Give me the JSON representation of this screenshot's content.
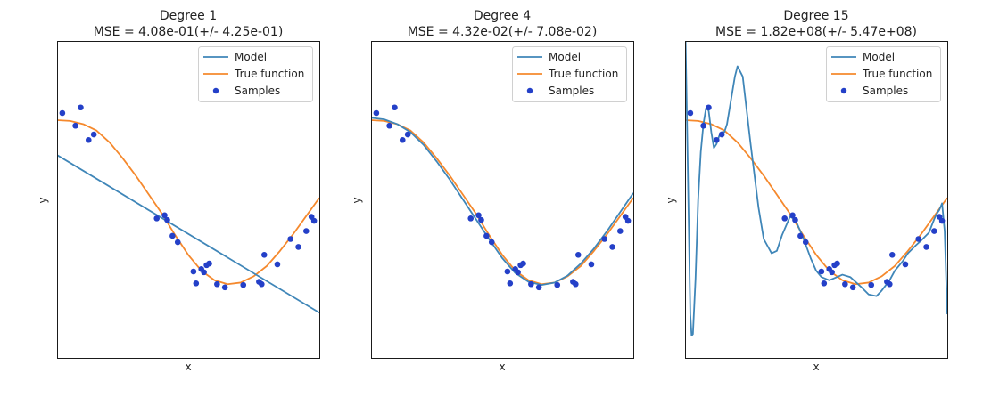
{
  "colors": {
    "model": "#3f86b8",
    "true_function": "#f5892d",
    "samples": "#2440c8"
  },
  "chart_data": [
    {
      "type": "line",
      "title": "Degree 1",
      "subtitle": "MSE = 4.08e-01(+/- 4.25e-01)",
      "xlabel": "x",
      "ylabel": "y",
      "xlim": [
        0,
        1
      ],
      "ylim": [
        -2,
        2
      ],
      "legend": {
        "position": "top-right",
        "entries": [
          "Model",
          "True function",
          "Samples"
        ]
      },
      "model": {
        "x": [
          0,
          1
        ],
        "y": [
          0.56,
          -1.43
        ]
      },
      "true_function": {
        "x": [
          0,
          0.05,
          0.1,
          0.15,
          0.2,
          0.25,
          0.3,
          0.35,
          0.4,
          0.45,
          0.5,
          0.55,
          0.6,
          0.65,
          0.7,
          0.75,
          0.8,
          0.85,
          0.9,
          0.95,
          1.0
        ],
        "y": [
          1.0,
          0.99,
          0.95,
          0.87,
          0.72,
          0.52,
          0.3,
          0.06,
          -0.18,
          -0.45,
          -0.7,
          -0.9,
          -1.02,
          -1.07,
          -1.05,
          -0.97,
          -0.84,
          -0.65,
          -0.44,
          -0.21,
          0.02
        ]
      },
      "samples": {
        "x": [
          0.02,
          0.07,
          0.09,
          0.12,
          0.14,
          0.38,
          0.41,
          0.42,
          0.44,
          0.46,
          0.52,
          0.53,
          0.55,
          0.56,
          0.57,
          0.58,
          0.61,
          0.64,
          0.71,
          0.77,
          0.78,
          0.79,
          0.84,
          0.89,
          0.92,
          0.95,
          0.97,
          0.98
        ],
        "y": [
          1.09,
          0.93,
          1.16,
          0.75,
          0.82,
          -0.24,
          -0.2,
          -0.26,
          -0.46,
          -0.54,
          -0.91,
          -1.06,
          -0.88,
          -0.92,
          -0.83,
          -0.81,
          -1.07,
          -1.11,
          -1.08,
          -1.04,
          -1.07,
          -0.7,
          -0.82,
          -0.5,
          -0.6,
          -0.4,
          -0.22,
          -0.27
        ]
      }
    },
    {
      "type": "line",
      "title": "Degree 4",
      "subtitle": "MSE = 4.32e-02(+/- 7.08e-02)",
      "xlabel": "x",
      "ylabel": "y",
      "xlim": [
        0,
        1
      ],
      "ylim": [
        -2,
        2
      ],
      "legend": {
        "position": "top-right",
        "entries": [
          "Model",
          "True function",
          "Samples"
        ]
      },
      "model": {
        "x": [
          0,
          0.05,
          0.1,
          0.15,
          0.2,
          0.25,
          0.3,
          0.35,
          0.4,
          0.45,
          0.5,
          0.55,
          0.6,
          0.65,
          0.7,
          0.75,
          0.8,
          0.85,
          0.9,
          0.95,
          1.0
        ],
        "y": [
          1.03,
          1.01,
          0.95,
          0.85,
          0.69,
          0.48,
          0.25,
          0.0,
          -0.25,
          -0.5,
          -0.74,
          -0.93,
          -1.04,
          -1.08,
          -1.05,
          -0.96,
          -0.81,
          -0.62,
          -0.4,
          -0.16,
          0.08
        ]
      },
      "true_function": {
        "x": [
          0,
          0.05,
          0.1,
          0.15,
          0.2,
          0.25,
          0.3,
          0.35,
          0.4,
          0.45,
          0.5,
          0.55,
          0.6,
          0.65,
          0.7,
          0.75,
          0.8,
          0.85,
          0.9,
          0.95,
          1.0
        ],
        "y": [
          1.0,
          0.99,
          0.95,
          0.87,
          0.72,
          0.52,
          0.3,
          0.06,
          -0.18,
          -0.45,
          -0.7,
          -0.9,
          -1.02,
          -1.07,
          -1.05,
          -0.97,
          -0.84,
          -0.65,
          -0.44,
          -0.21,
          0.02
        ]
      },
      "samples": {
        "x": [
          0.02,
          0.07,
          0.09,
          0.12,
          0.14,
          0.38,
          0.41,
          0.42,
          0.44,
          0.46,
          0.52,
          0.53,
          0.55,
          0.56,
          0.57,
          0.58,
          0.61,
          0.64,
          0.71,
          0.77,
          0.78,
          0.79,
          0.84,
          0.89,
          0.92,
          0.95,
          0.97,
          0.98
        ],
        "y": [
          1.09,
          0.93,
          1.16,
          0.75,
          0.82,
          -0.24,
          -0.2,
          -0.26,
          -0.46,
          -0.54,
          -0.91,
          -1.06,
          -0.88,
          -0.92,
          -0.83,
          -0.81,
          -1.07,
          -1.11,
          -1.08,
          -1.04,
          -1.07,
          -0.7,
          -0.82,
          -0.5,
          -0.6,
          -0.4,
          -0.22,
          -0.27
        ]
      }
    },
    {
      "type": "line",
      "title": "Degree 15",
      "subtitle": "MSE = 1.82e+08(+/- 5.47e+08)",
      "xlabel": "x",
      "ylabel": "y",
      "xlim": [
        0,
        1
      ],
      "ylim": [
        -2,
        2
      ],
      "legend": {
        "position": "top-right",
        "entries": [
          "Model",
          "True function",
          "Samples"
        ]
      },
      "model": {
        "x": [
          0,
          0.01,
          0.02,
          0.025,
          0.03,
          0.04,
          0.05,
          0.06,
          0.07,
          0.08,
          0.09,
          0.1,
          0.11,
          0.12,
          0.13,
          0.14,
          0.15,
          0.16,
          0.17,
          0.18,
          0.19,
          0.2,
          0.22,
          0.25,
          0.28,
          0.3,
          0.33,
          0.35,
          0.37,
          0.4,
          0.42,
          0.45,
          0.48,
          0.5,
          0.52,
          0.55,
          0.58,
          0.6,
          0.63,
          0.67,
          0.7,
          0.73,
          0.75,
          0.78,
          0.8,
          0.83,
          0.85,
          0.88,
          0.9,
          0.93,
          0.95,
          0.96,
          0.97,
          0.98,
          0.99,
          1.0
        ],
        "y": [
          2.4,
          0.5,
          -1.45,
          -1.72,
          -1.7,
          -1.0,
          0.0,
          0.6,
          0.95,
          1.15,
          1.12,
          0.85,
          0.65,
          0.7,
          0.8,
          0.85,
          0.85,
          0.95,
          1.15,
          1.35,
          1.55,
          1.68,
          1.55,
          0.7,
          -0.1,
          -0.5,
          -0.68,
          -0.65,
          -0.45,
          -0.22,
          -0.25,
          -0.48,
          -0.75,
          -0.9,
          -0.98,
          -1.02,
          -0.98,
          -0.95,
          -0.98,
          -1.1,
          -1.2,
          -1.22,
          -1.15,
          -1.02,
          -0.9,
          -0.78,
          -0.68,
          -0.58,
          -0.52,
          -0.42,
          -0.25,
          -0.18,
          -0.13,
          -0.05,
          -0.4,
          -1.45
        ]
      },
      "true_function": {
        "x": [
          0,
          0.05,
          0.1,
          0.15,
          0.2,
          0.25,
          0.3,
          0.35,
          0.4,
          0.45,
          0.5,
          0.55,
          0.6,
          0.65,
          0.7,
          0.75,
          0.8,
          0.85,
          0.9,
          0.95,
          1.0
        ],
        "y": [
          1.0,
          0.99,
          0.95,
          0.87,
          0.72,
          0.52,
          0.3,
          0.06,
          -0.18,
          -0.45,
          -0.7,
          -0.9,
          -1.02,
          -1.07,
          -1.05,
          -0.97,
          -0.84,
          -0.65,
          -0.44,
          -0.21,
          0.02
        ]
      },
      "samples": {
        "x": [
          0.02,
          0.07,
          0.09,
          0.12,
          0.14,
          0.38,
          0.41,
          0.42,
          0.44,
          0.46,
          0.52,
          0.53,
          0.55,
          0.56,
          0.57,
          0.58,
          0.61,
          0.64,
          0.71,
          0.77,
          0.78,
          0.79,
          0.84,
          0.89,
          0.92,
          0.95,
          0.97,
          0.98
        ],
        "y": [
          1.09,
          0.93,
          1.16,
          0.75,
          0.82,
          -0.24,
          -0.2,
          -0.26,
          -0.46,
          -0.54,
          -0.91,
          -1.06,
          -0.88,
          -0.92,
          -0.83,
          -0.81,
          -1.07,
          -1.11,
          -1.08,
          -1.04,
          -1.07,
          -0.7,
          -0.82,
          -0.5,
          -0.6,
          -0.4,
          -0.22,
          -0.27
        ]
      }
    }
  ]
}
